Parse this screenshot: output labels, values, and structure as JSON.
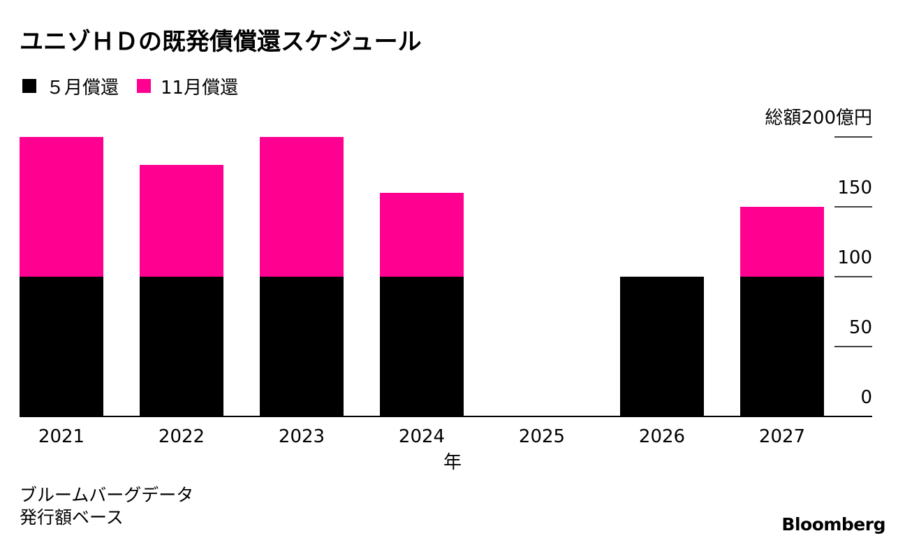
{
  "title": "ユニゾＨＤの既発債償還スケジュール",
  "legend": [
    {
      "label": "５月償還",
      "color": "#000000"
    },
    {
      "label": "11月償還",
      "color": "#ff0090"
    }
  ],
  "source": [
    "ブルームバーグデータ",
    "発行額ベース"
  ],
  "brand": "Bloomberg",
  "chart_data": {
    "type": "bar",
    "stacked": true,
    "categories": [
      "2021",
      "2022",
      "2023",
      "2024",
      "2025",
      "2026",
      "2027"
    ],
    "series": [
      {
        "name": "５月償還",
        "color": "#000000",
        "values": [
          100,
          100,
          100,
          100,
          0,
          100,
          100
        ]
      },
      {
        "name": "11月償還",
        "color": "#ff0090",
        "values": [
          100,
          80,
          100,
          60,
          0,
          0,
          50
        ]
      }
    ],
    "xlabel": "年",
    "ylabel": "総額200億円",
    "ylim": [
      0,
      200
    ],
    "yticks": [
      0,
      50,
      100,
      150,
      200
    ],
    "ytick_labels": [
      "0",
      "50",
      "100",
      "150",
      "総額200億円"
    ],
    "y_axis_side": "right",
    "legend_position": "top-left",
    "grid": false
  }
}
